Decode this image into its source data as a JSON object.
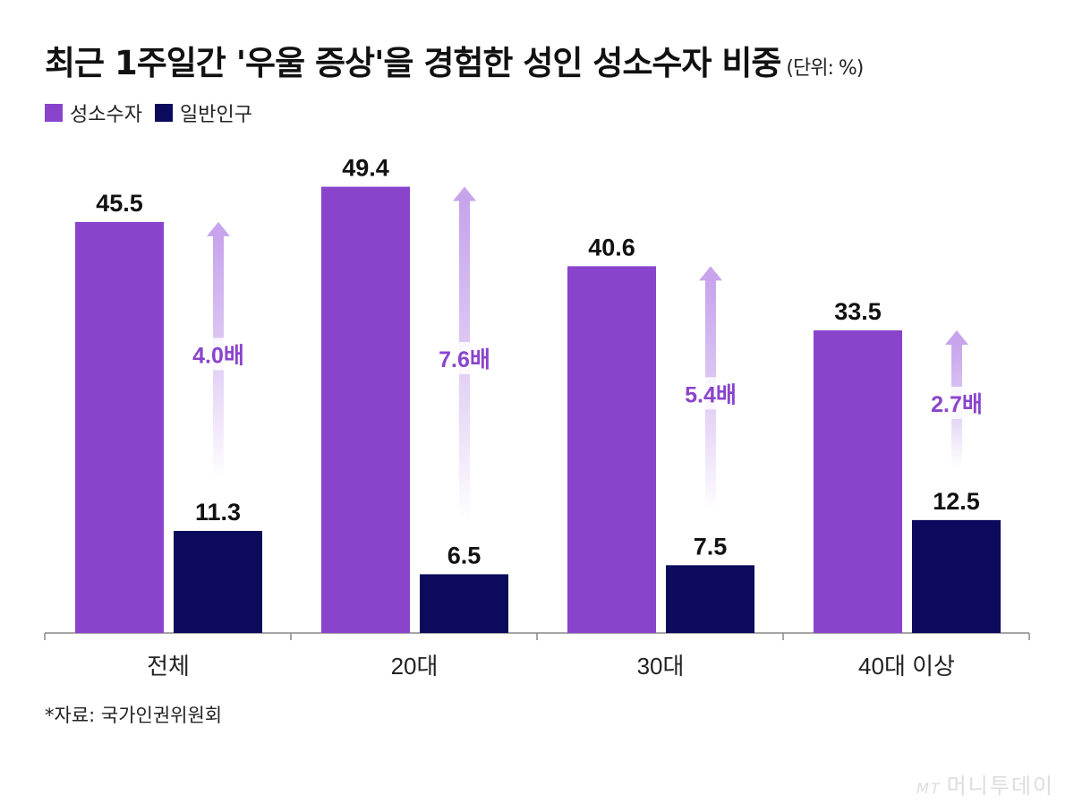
{
  "chart_data": {
    "type": "bar",
    "title": "최근 1주일간 '우울 증상'을 경험한 성인 성소수자 비중",
    "unit_label": "(단위: %)",
    "categories": [
      "전체",
      "20대",
      "30대",
      "40대 이상"
    ],
    "series": [
      {
        "name": "성소수자",
        "color": "#8a44cc",
        "values": [
          45.5,
          49.4,
          40.6,
          33.5
        ]
      },
      {
        "name": "일반인구",
        "color": "#0b0a5c",
        "values": [
          11.3,
          6.5,
          7.5,
          12.5
        ]
      }
    ],
    "ratio_labels": [
      "4.0배",
      "7.6배",
      "5.4배",
      "2.7배"
    ],
    "ratio_color": "#8a44cc",
    "ylim": [
      0,
      50
    ],
    "grid": false,
    "legend_position": "top-left",
    "source": "*자료: 국가인권위원회"
  },
  "logo_text": "MT",
  "logo_name": "머니투데이"
}
